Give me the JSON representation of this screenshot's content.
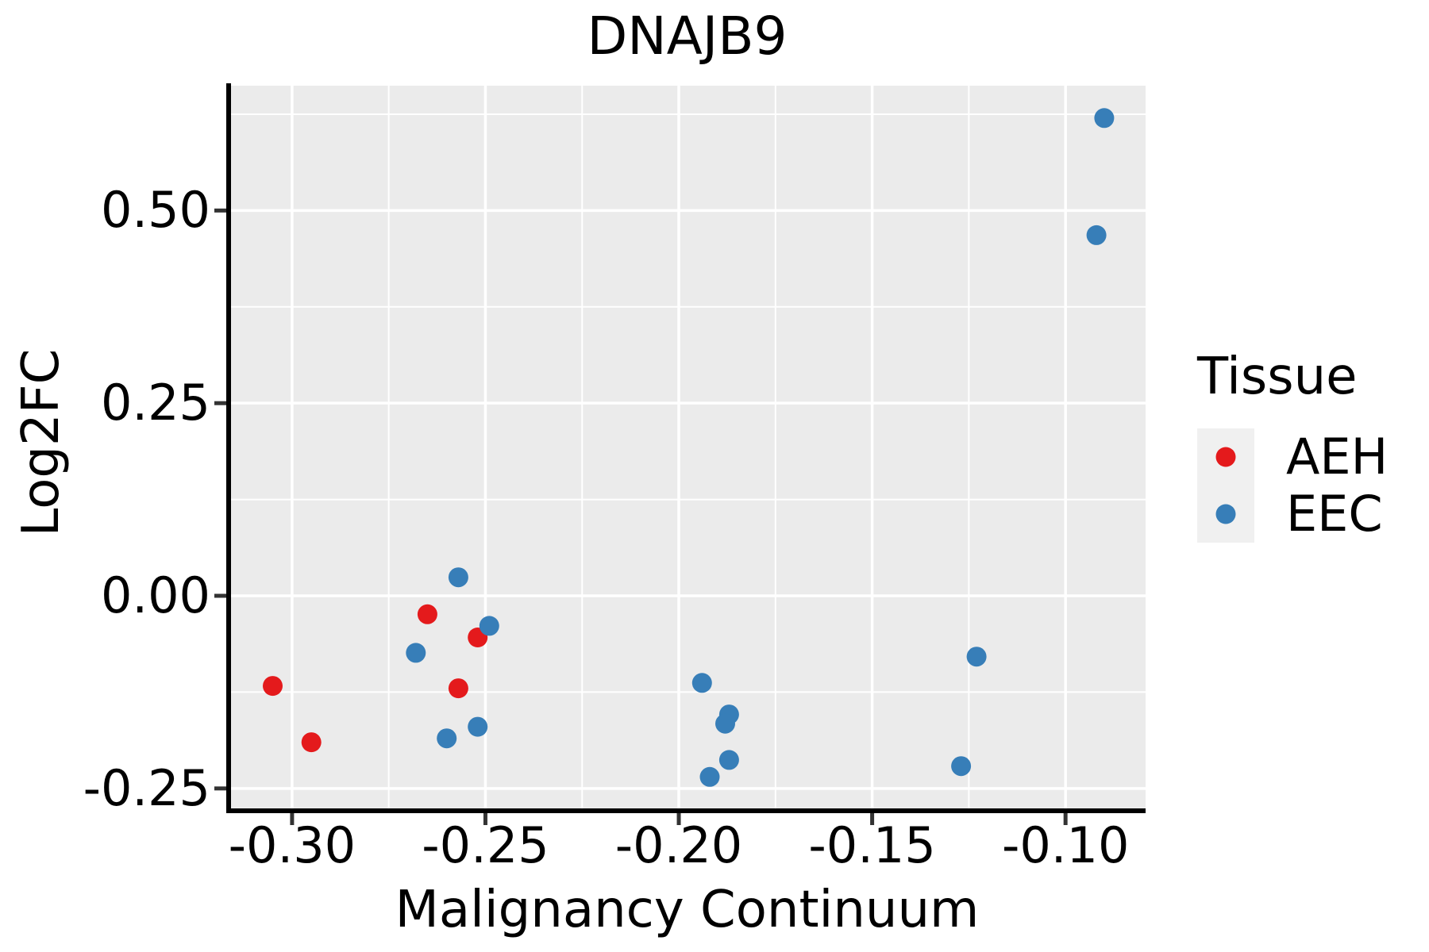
{
  "title": "DNAJB9",
  "x_axis": {
    "label": "Malignancy Continuum",
    "ticks": [
      {
        "value": -0.3,
        "label": "-0.30"
      },
      {
        "value": -0.25,
        "label": "-0.25"
      },
      {
        "value": -0.2,
        "label": "-0.20"
      },
      {
        "value": -0.15,
        "label": "-0.15"
      },
      {
        "value": -0.1,
        "label": "-0.10"
      }
    ],
    "minor_ticks": [
      -0.275,
      -0.225,
      -0.175,
      -0.125
    ]
  },
  "y_axis": {
    "label": "Log2FC",
    "ticks": [
      {
        "value": 0.5,
        "label": "0.50"
      },
      {
        "value": 0.25,
        "label": "0.25"
      },
      {
        "value": 0.0,
        "label": "0.00"
      },
      {
        "value": -0.25,
        "label": "-0.25"
      }
    ],
    "minor_ticks": [
      0.625,
      0.375,
      0.125,
      -0.125
    ]
  },
  "legend": {
    "title": "Tissue",
    "entries": [
      {
        "label": "AEH",
        "color": "#E41A1C"
      },
      {
        "label": "EEC",
        "color": "#377EB8"
      }
    ]
  },
  "colors": {
    "panel_background": "#EBEBEB",
    "gridline": "#FFFFFF",
    "axis_line": "#000000",
    "tick_mark": "#333333",
    "text": "#000000",
    "legend_key_background": "#F0F0F0",
    "aeh": "#E41A1C",
    "eec": "#377EB8"
  },
  "chart_data": {
    "type": "scatter",
    "title": "DNAJB9",
    "xlabel": "Malignancy Continuum",
    "ylabel": "Log2FC",
    "xlim": [
      -0.3164,
      -0.0793
    ],
    "ylim": [
      -0.279,
      0.662
    ],
    "grid": true,
    "legend_title": "Tissue",
    "legend_position": "right",
    "series": [
      {
        "name": "AEH",
        "color": "#E41A1C",
        "points": [
          [
            -0.305,
            -0.117
          ],
          [
            -0.295,
            -0.19
          ],
          [
            -0.265,
            -0.024
          ],
          [
            -0.252,
            -0.054
          ],
          [
            -0.257,
            -0.12
          ]
        ]
      },
      {
        "name": "EEC",
        "color": "#377EB8",
        "points": [
          [
            -0.257,
            0.024
          ],
          [
            -0.249,
            -0.039
          ],
          [
            -0.268,
            -0.074
          ],
          [
            -0.252,
            -0.17
          ],
          [
            -0.26,
            -0.185
          ],
          [
            -0.194,
            -0.113
          ],
          [
            -0.187,
            -0.154
          ],
          [
            -0.188,
            -0.166
          ],
          [
            -0.187,
            -0.213
          ],
          [
            -0.192,
            -0.235
          ],
          [
            -0.123,
            -0.079
          ],
          [
            -0.127,
            -0.221
          ],
          [
            -0.092,
            0.468
          ],
          [
            -0.09,
            0.62
          ]
        ]
      }
    ]
  }
}
